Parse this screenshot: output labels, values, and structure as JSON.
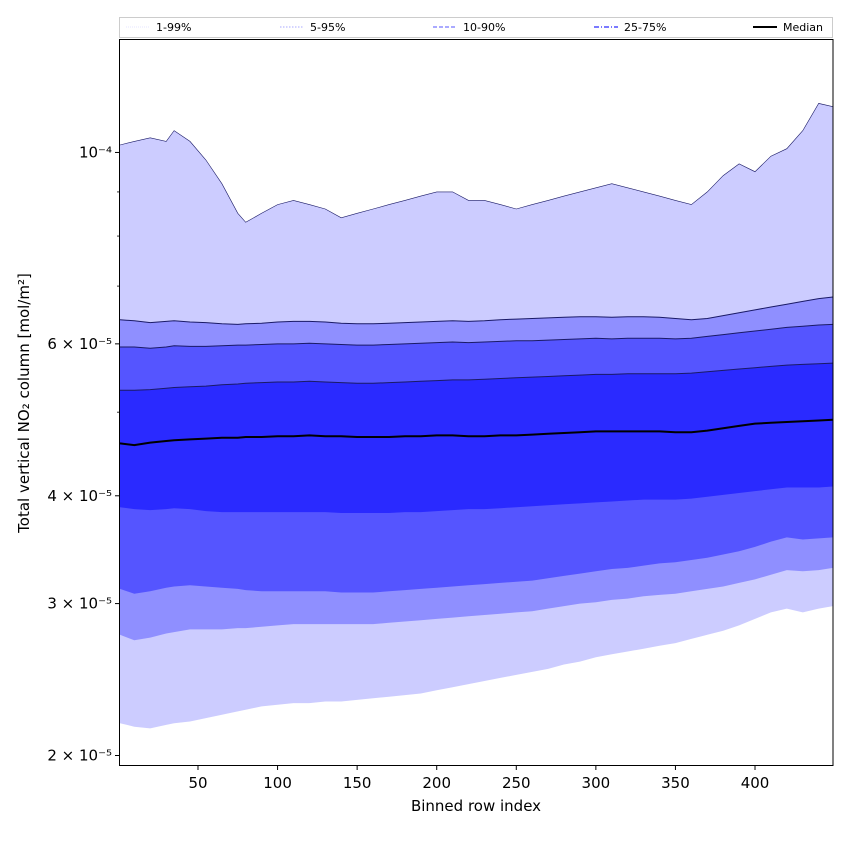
{
  "chart_data": {
    "type": "area",
    "xlabel": "Binned row index",
    "ylabel": "Total vertical NO₂ column [mol/m²]",
    "xlim": [
      1,
      449
    ],
    "ylim": [
      1.95e-05,
      0.000135
    ],
    "yscale": "log",
    "x_ticks": [
      50,
      100,
      150,
      200,
      250,
      300,
      350,
      400
    ],
    "y_ticks": [
      {
        "value": 2e-05,
        "label": "2 × 10⁻⁵"
      },
      {
        "value": 3e-05,
        "label": "3 × 10⁻⁵"
      },
      {
        "value": 4e-05,
        "label": "4 × 10⁻⁵"
      },
      {
        "value": 6e-05,
        "label": "6 × 10⁻⁵"
      },
      {
        "value": 0.0001,
        "label": "10⁻⁴"
      }
    ],
    "grid": false,
    "legend_position": "top",
    "x": [
      1,
      10,
      20,
      30,
      35,
      45,
      55,
      65,
      75,
      80,
      90,
      100,
      110,
      120,
      130,
      140,
      150,
      160,
      170,
      180,
      190,
      200,
      210,
      220,
      230,
      240,
      250,
      260,
      270,
      280,
      290,
      300,
      310,
      320,
      330,
      340,
      350,
      360,
      370,
      380,
      390,
      400,
      410,
      420,
      430,
      440,
      449
    ],
    "series": [
      {
        "name": "1-99%",
        "lower": [
          2.18e-05,
          2.16e-05,
          2.15e-05,
          2.17e-05,
          2.18e-05,
          2.19e-05,
          2.21e-05,
          2.23e-05,
          2.25e-05,
          2.26e-05,
          2.28e-05,
          2.29e-05,
          2.3e-05,
          2.3e-05,
          2.31e-05,
          2.31e-05,
          2.32e-05,
          2.33e-05,
          2.34e-05,
          2.35e-05,
          2.36e-05,
          2.38e-05,
          2.4e-05,
          2.42e-05,
          2.44e-05,
          2.46e-05,
          2.48e-05,
          2.5e-05,
          2.52e-05,
          2.55e-05,
          2.57e-05,
          2.6e-05,
          2.62e-05,
          2.64e-05,
          2.66e-05,
          2.68e-05,
          2.7e-05,
          2.73e-05,
          2.76e-05,
          2.79e-05,
          2.83e-05,
          2.88e-05,
          2.93e-05,
          2.96e-05,
          2.93e-05,
          2.96e-05,
          2.98e-05
        ],
        "upper": [
          0.000102,
          0.000103,
          0.000104,
          0.000103,
          0.000106,
          0.000103,
          9.8e-05,
          9.2e-05,
          8.5e-05,
          8.3e-05,
          8.5e-05,
          8.7e-05,
          8.8e-05,
          8.7e-05,
          8.6e-05,
          8.4e-05,
          8.5e-05,
          8.6e-05,
          8.7e-05,
          8.8e-05,
          8.9e-05,
          9e-05,
          9e-05,
          8.8e-05,
          8.8e-05,
          8.7e-05,
          8.6e-05,
          8.7e-05,
          8.8e-05,
          8.9e-05,
          9e-05,
          9.1e-05,
          9.2e-05,
          9.1e-05,
          9e-05,
          8.9e-05,
          8.8e-05,
          8.7e-05,
          9e-05,
          9.4e-05,
          9.7e-05,
          9.5e-05,
          9.9e-05,
          0.000101,
          0.000106,
          0.000114,
          0.000113
        ]
      },
      {
        "name": "5-95%",
        "lower": [
          2.76e-05,
          2.72e-05,
          2.74e-05,
          2.77e-05,
          2.78e-05,
          2.8e-05,
          2.8e-05,
          2.8e-05,
          2.81e-05,
          2.81e-05,
          2.82e-05,
          2.83e-05,
          2.84e-05,
          2.84e-05,
          2.84e-05,
          2.84e-05,
          2.84e-05,
          2.84e-05,
          2.85e-05,
          2.86e-05,
          2.87e-05,
          2.88e-05,
          2.89e-05,
          2.9e-05,
          2.91e-05,
          2.92e-05,
          2.93e-05,
          2.94e-05,
          2.96e-05,
          2.98e-05,
          3e-05,
          3.01e-05,
          3.03e-05,
          3.04e-05,
          3.06e-05,
          3.07e-05,
          3.08e-05,
          3.1e-05,
          3.12e-05,
          3.14e-05,
          3.17e-05,
          3.2e-05,
          3.24e-05,
          3.28e-05,
          3.27e-05,
          3.28e-05,
          3.3e-05
        ],
        "upper": [
          6.4e-05,
          6.38e-05,
          6.35e-05,
          6.37e-05,
          6.38e-05,
          6.36e-05,
          6.35e-05,
          6.33e-05,
          6.32e-05,
          6.33e-05,
          6.34e-05,
          6.36e-05,
          6.37e-05,
          6.37e-05,
          6.36e-05,
          6.34e-05,
          6.33e-05,
          6.33e-05,
          6.34e-05,
          6.35e-05,
          6.36e-05,
          6.37e-05,
          6.38e-05,
          6.37e-05,
          6.38e-05,
          6.4e-05,
          6.41e-05,
          6.42e-05,
          6.43e-05,
          6.44e-05,
          6.45e-05,
          6.45e-05,
          6.44e-05,
          6.45e-05,
          6.45e-05,
          6.44e-05,
          6.42e-05,
          6.4e-05,
          6.42e-05,
          6.47e-05,
          6.52e-05,
          6.57e-05,
          6.62e-05,
          6.67e-05,
          6.72e-05,
          6.77e-05,
          6.8e-05
        ]
      },
      {
        "name": "10-90%",
        "lower": [
          3.12e-05,
          3.08e-05,
          3.1e-05,
          3.13e-05,
          3.14e-05,
          3.15e-05,
          3.14e-05,
          3.13e-05,
          3.12e-05,
          3.11e-05,
          3.1e-05,
          3.1e-05,
          3.1e-05,
          3.1e-05,
          3.1e-05,
          3.09e-05,
          3.09e-05,
          3.09e-05,
          3.1e-05,
          3.11e-05,
          3.12e-05,
          3.13e-05,
          3.14e-05,
          3.15e-05,
          3.16e-05,
          3.17e-05,
          3.18e-05,
          3.19e-05,
          3.21e-05,
          3.23e-05,
          3.25e-05,
          3.27e-05,
          3.29e-05,
          3.3e-05,
          3.32e-05,
          3.34e-05,
          3.35e-05,
          3.37e-05,
          3.39e-05,
          3.42e-05,
          3.45e-05,
          3.49e-05,
          3.54e-05,
          3.58e-05,
          3.56e-05,
          3.57e-05,
          3.58e-05
        ],
        "upper": [
          5.95e-05,
          5.95e-05,
          5.93e-05,
          5.95e-05,
          5.97e-05,
          5.96e-05,
          5.96e-05,
          5.97e-05,
          5.98e-05,
          5.98e-05,
          5.99e-05,
          6e-05,
          6e-05,
          6.01e-05,
          6e-05,
          5.99e-05,
          5.98e-05,
          5.98e-05,
          5.99e-05,
          6e-05,
          6.01e-05,
          6.02e-05,
          6.03e-05,
          6.02e-05,
          6.03e-05,
          6.04e-05,
          6.05e-05,
          6.05e-05,
          6.06e-05,
          6.07e-05,
          6.08e-05,
          6.09e-05,
          6.08e-05,
          6.09e-05,
          6.09e-05,
          6.09e-05,
          6.08e-05,
          6.09e-05,
          6.12e-05,
          6.15e-05,
          6.18e-05,
          6.21e-05,
          6.24e-05,
          6.27e-05,
          6.29e-05,
          6.31e-05,
          6.32e-05
        ]
      },
      {
        "name": "25-75%",
        "lower": [
          3.88e-05,
          3.86e-05,
          3.85e-05,
          3.86e-05,
          3.87e-05,
          3.86e-05,
          3.84e-05,
          3.83e-05,
          3.83e-05,
          3.83e-05,
          3.83e-05,
          3.83e-05,
          3.83e-05,
          3.83e-05,
          3.83e-05,
          3.82e-05,
          3.82e-05,
          3.82e-05,
          3.82e-05,
          3.83e-05,
          3.83e-05,
          3.84e-05,
          3.85e-05,
          3.86e-05,
          3.86e-05,
          3.87e-05,
          3.88e-05,
          3.89e-05,
          3.9e-05,
          3.91e-05,
          3.92e-05,
          3.93e-05,
          3.94e-05,
          3.95e-05,
          3.96e-05,
          3.96e-05,
          3.96e-05,
          3.97e-05,
          3.99e-05,
          4.01e-05,
          4.03e-05,
          4.05e-05,
          4.07e-05,
          4.09e-05,
          4.09e-05,
          4.09e-05,
          4.1e-05
        ],
        "upper": [
          5.3e-05,
          5.3e-05,
          5.31e-05,
          5.33e-05,
          5.34e-05,
          5.35e-05,
          5.36e-05,
          5.38e-05,
          5.39e-05,
          5.4e-05,
          5.41e-05,
          5.42e-05,
          5.42e-05,
          5.43e-05,
          5.42e-05,
          5.41e-05,
          5.4e-05,
          5.4e-05,
          5.41e-05,
          5.42e-05,
          5.43e-05,
          5.44e-05,
          5.45e-05,
          5.45e-05,
          5.46e-05,
          5.47e-05,
          5.48e-05,
          5.49e-05,
          5.5e-05,
          5.51e-05,
          5.52e-05,
          5.53e-05,
          5.53e-05,
          5.54e-05,
          5.54e-05,
          5.54e-05,
          5.54e-05,
          5.55e-05,
          5.57e-05,
          5.59e-05,
          5.61e-05,
          5.63e-05,
          5.65e-05,
          5.67e-05,
          5.68e-05,
          5.69e-05,
          5.7e-05
        ]
      },
      {
        "name": "Median",
        "values": [
          4.6e-05,
          4.58e-05,
          4.61e-05,
          4.63e-05,
          4.64e-05,
          4.65e-05,
          4.66e-05,
          4.67e-05,
          4.67e-05,
          4.68e-05,
          4.68e-05,
          4.69e-05,
          4.69e-05,
          4.7e-05,
          4.69e-05,
          4.69e-05,
          4.68e-05,
          4.68e-05,
          4.68e-05,
          4.69e-05,
          4.69e-05,
          4.7e-05,
          4.7e-05,
          4.69e-05,
          4.69e-05,
          4.7e-05,
          4.7e-05,
          4.71e-05,
          4.72e-05,
          4.73e-05,
          4.74e-05,
          4.75e-05,
          4.75e-05,
          4.75e-05,
          4.75e-05,
          4.75e-05,
          4.74e-05,
          4.74e-05,
          4.76e-05,
          4.79e-05,
          4.82e-05,
          4.85e-05,
          4.86e-05,
          4.87e-05,
          4.88e-05,
          4.89e-05,
          4.9e-05
        ]
      }
    ],
    "colors": {
      "1-99%": "#ccccff",
      "5-95%": "#8f8fff",
      "10-90%": "#5555ff",
      "25-75%": "#2a2aff",
      "Median": "#000000",
      "edge_line": "#1a1a66"
    },
    "legend": [
      {
        "label": "1-99%",
        "style": "dotted-thin"
      },
      {
        "label": "5-95%",
        "style": "dotted"
      },
      {
        "label": "10-90%",
        "style": "dashed"
      },
      {
        "label": "25-75%",
        "style": "dashdot"
      },
      {
        "label": "Median",
        "style": "solid-thick"
      }
    ]
  }
}
